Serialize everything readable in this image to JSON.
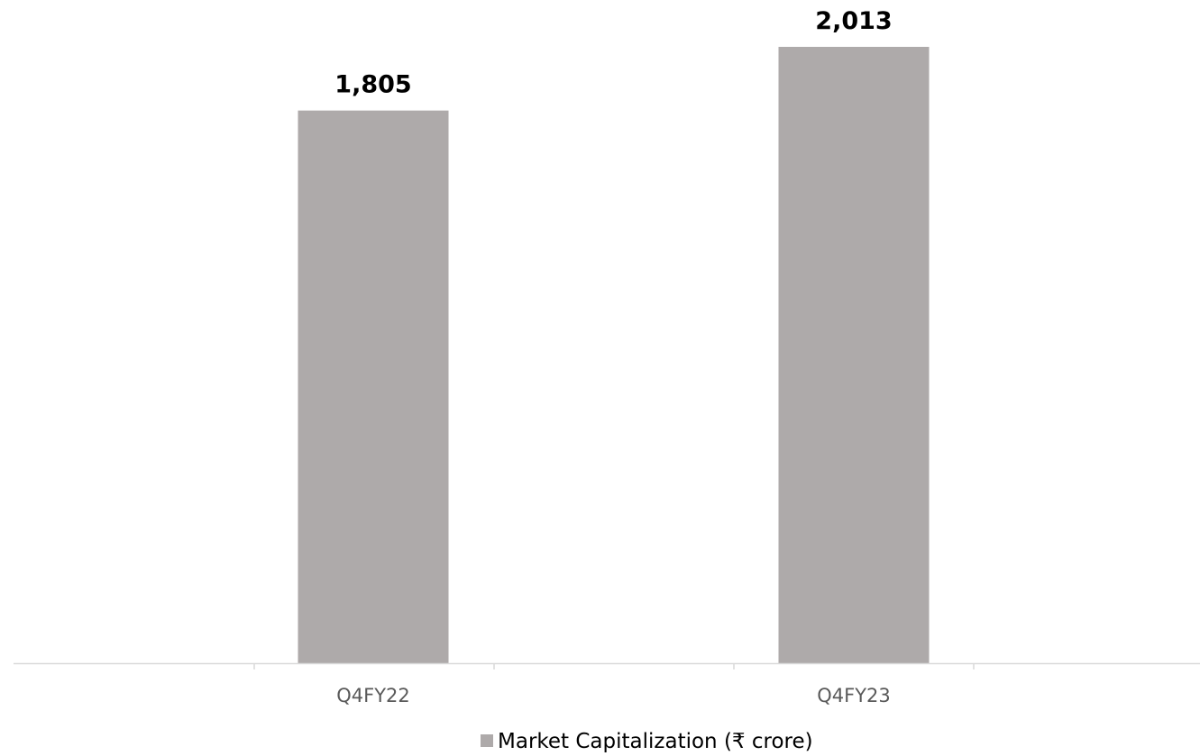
{
  "chart_data": {
    "type": "bar",
    "categories": [
      "Q4FY22",
      "Q4FY23"
    ],
    "series": [
      {
        "name": "Market Capitalization (₹ crore)",
        "values": [
          1805,
          2013
        ],
        "value_labels": [
          "1,805",
          "2,013"
        ],
        "color": "#aeaaaa"
      }
    ],
    "title": "",
    "xlabel": "",
    "ylabel": "",
    "ylim": [
      0,
      2013
    ],
    "grid": false,
    "legend_position": "bottom-center",
    "axis_color": "#d9d9d9"
  }
}
